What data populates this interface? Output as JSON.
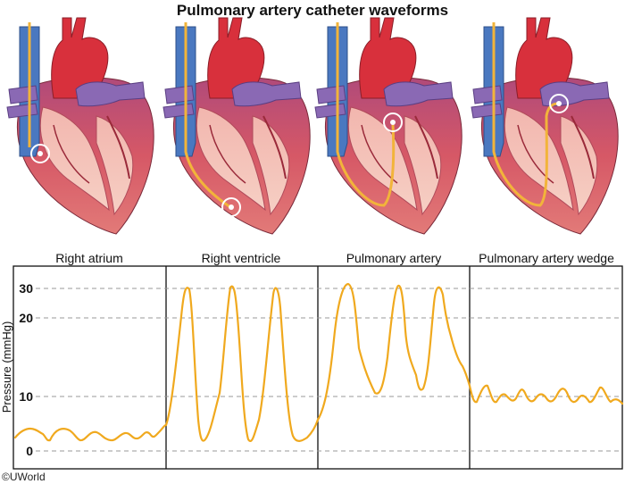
{
  "title": "Pulmonary artery catheter waveforms",
  "panels": [
    {
      "label": "Right atrium"
    },
    {
      "label": "Right ventricle"
    },
    {
      "label": "Pulmonary artery"
    },
    {
      "label": "Pulmonary artery wedge"
    }
  ],
  "y_axis": {
    "label": "Pressure (mmHg)",
    "ticks": [
      "30",
      "20",
      "10",
      "0"
    ]
  },
  "copyright": "©UWorld",
  "colors": {
    "waveform": "#f0a91e",
    "vein": "#4a78c0",
    "aorta": "#d8303c",
    "pulmonary": "#8a69b4",
    "heart": "#d35a66",
    "catheter": "#f2b43a"
  }
}
